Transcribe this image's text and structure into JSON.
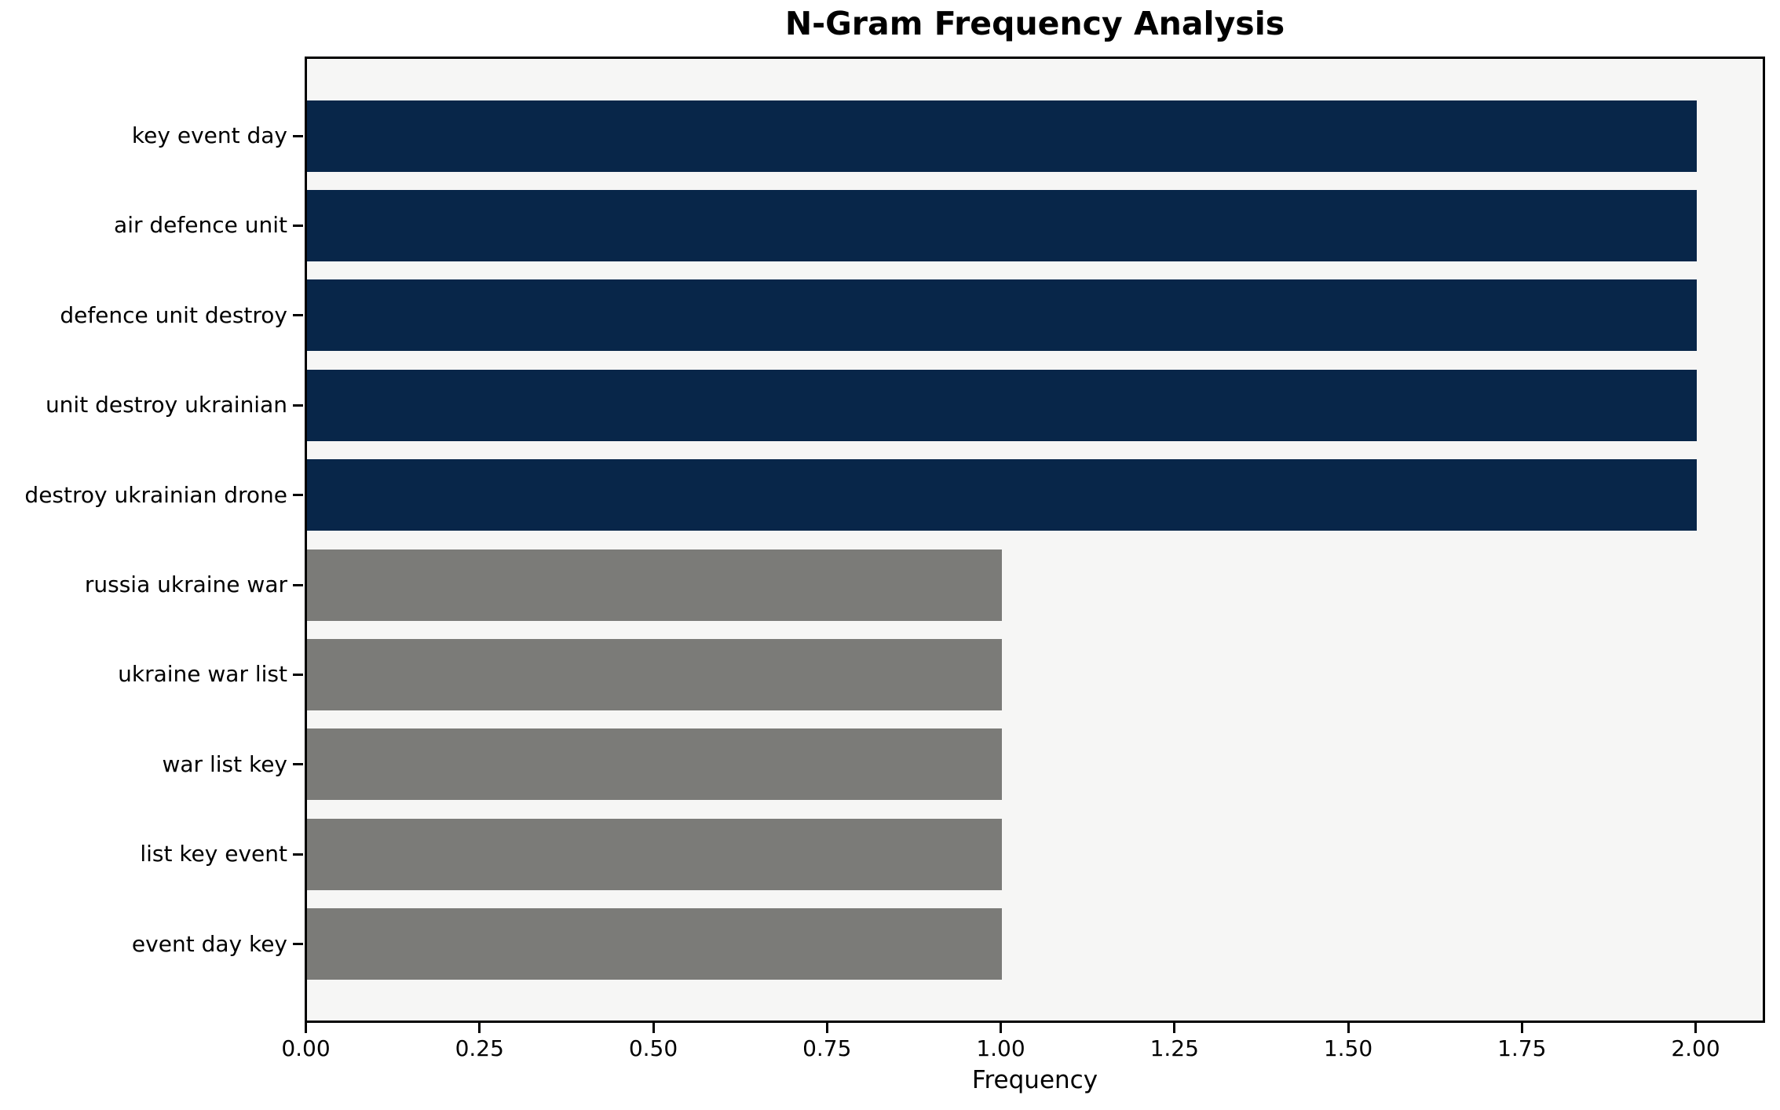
{
  "chart_data": {
    "type": "bar",
    "orientation": "horizontal",
    "title": "N-Gram Frequency Analysis",
    "xlabel": "Frequency",
    "ylabel": "",
    "categories": [
      "key event day",
      "air defence unit",
      "defence unit destroy",
      "unit destroy ukrainian",
      "destroy ukrainian drone",
      "russia ukraine war",
      "ukraine war list",
      "war list key",
      "list key event",
      "event day key"
    ],
    "values": [
      2,
      2,
      2,
      2,
      2,
      1,
      1,
      1,
      1,
      1
    ],
    "bar_colors": [
      "#082649",
      "#082649",
      "#082649",
      "#082649",
      "#082649",
      "#7b7b78",
      "#7b7b78",
      "#7b7b78",
      "#7b7b78",
      "#7b7b78"
    ],
    "xlim": [
      0,
      2.1
    ],
    "xtick_values": [
      0,
      0.25,
      0.5,
      0.75,
      1.0,
      1.25,
      1.5,
      1.75,
      2.0
    ],
    "xtick_labels": [
      "0.00",
      "0.25",
      "0.50",
      "0.75",
      "1.00",
      "1.25",
      "1.50",
      "1.75",
      "2.00"
    ],
    "grid": false,
    "legend": null,
    "colors": {
      "frequent_bar": "#082649",
      "infrequent_bar": "#7b7b78",
      "plot_background": "#f6f6f5",
      "spine": "#000000",
      "text": "#000000"
    }
  }
}
